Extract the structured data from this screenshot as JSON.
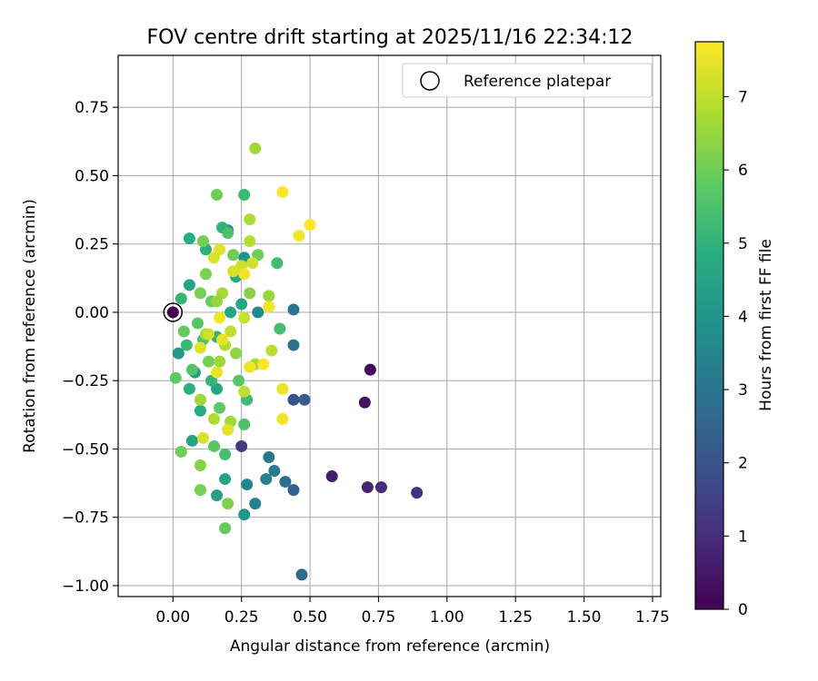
{
  "chart_data": {
    "type": "scatter",
    "title": "FOV centre drift starting at 2025/11/16 22:34:12",
    "xlabel": "Angular distance from reference (arcmin)",
    "ylabel": "Rotation from reference (arcmin)",
    "xlim": [
      -0.2,
      1.78
    ],
    "ylim": [
      -1.04,
      0.94
    ],
    "xticks": [
      0.0,
      0.25,
      0.5,
      0.75,
      1.0,
      1.25,
      1.5,
      1.75
    ],
    "xtick_labels": [
      "0.00",
      "0.25",
      "0.50",
      "0.75",
      "1.00",
      "1.25",
      "1.50",
      "1.75"
    ],
    "yticks": [
      -1.0,
      -0.75,
      -0.5,
      -0.25,
      0.0,
      0.25,
      0.5,
      0.75
    ],
    "ytick_labels": [
      "−1.00",
      "−0.75",
      "−0.50",
      "−0.25",
      "0.00",
      "0.25",
      "0.50",
      "0.75"
    ],
    "grid": true,
    "legend": {
      "placement": "top-right",
      "entries": [
        {
          "label": "Reference platepar",
          "marker": "open-circle"
        }
      ]
    },
    "colorbar": {
      "label": "Hours from first FF file",
      "colormap": "viridis",
      "range": [
        0,
        7.75
      ],
      "ticks": [
        0,
        1,
        2,
        3,
        4,
        5,
        6,
        7
      ],
      "tick_labels": [
        "0",
        "1",
        "2",
        "3",
        "4",
        "5",
        "6",
        "7"
      ]
    },
    "reference_point": {
      "x": 0.0,
      "y": 0.0
    },
    "points": [
      {
        "x": 0.0,
        "y": 0.0,
        "c": 0.0
      },
      {
        "x": 0.72,
        "y": -0.21,
        "c": 0.2
      },
      {
        "x": 0.7,
        "y": -0.33,
        "c": 0.4
      },
      {
        "x": 0.58,
        "y": -0.6,
        "c": 0.6
      },
      {
        "x": 0.71,
        "y": -0.64,
        "c": 0.8
      },
      {
        "x": 0.76,
        "y": -0.64,
        "c": 1.0
      },
      {
        "x": 0.89,
        "y": -0.66,
        "c": 1.1
      },
      {
        "x": 0.25,
        "y": -0.49,
        "c": 1.3
      },
      {
        "x": 0.44,
        "y": -0.32,
        "c": 2.0
      },
      {
        "x": 0.48,
        "y": -0.32,
        "c": 2.2
      },
      {
        "x": 0.44,
        "y": -0.65,
        "c": 2.3
      },
      {
        "x": 0.47,
        "y": -0.96,
        "c": 2.6
      },
      {
        "x": 0.41,
        "y": -0.62,
        "c": 2.8
      },
      {
        "x": 0.44,
        "y": -0.12,
        "c": 2.9
      },
      {
        "x": 0.44,
        "y": 0.01,
        "c": 3.0
      },
      {
        "x": 0.35,
        "y": -0.53,
        "c": 3.1
      },
      {
        "x": 0.37,
        "y": -0.58,
        "c": 3.2
      },
      {
        "x": 0.34,
        "y": -0.61,
        "c": 3.3
      },
      {
        "x": 0.3,
        "y": -0.7,
        "c": 3.4
      },
      {
        "x": 0.27,
        "y": -0.63,
        "c": 3.5
      },
      {
        "x": 0.31,
        "y": 0.0,
        "c": 3.6
      },
      {
        "x": 0.26,
        "y": -0.74,
        "c": 4.0
      },
      {
        "x": 0.2,
        "y": 0.3,
        "c": 3.8
      },
      {
        "x": 0.26,
        "y": 0.2,
        "c": 3.9
      },
      {
        "x": 0.02,
        "y": -0.15,
        "c": 4.1
      },
      {
        "x": 0.08,
        "y": -0.22,
        "c": 4.3
      },
      {
        "x": 0.07,
        "y": -0.47,
        "c": 4.4
      },
      {
        "x": 0.16,
        "y": -0.67,
        "c": 4.4
      },
      {
        "x": 0.19,
        "y": -0.61,
        "c": 4.5
      },
      {
        "x": 0.16,
        "y": -0.28,
        "c": 4.6
      },
      {
        "x": 0.06,
        "y": 0.1,
        "c": 4.5
      },
      {
        "x": 0.06,
        "y": 0.27,
        "c": 4.8
      },
      {
        "x": 0.12,
        "y": 0.23,
        "c": 4.9
      },
      {
        "x": 0.18,
        "y": 0.31,
        "c": 5.0
      },
      {
        "x": 0.23,
        "y": 0.13,
        "c": 4.7
      },
      {
        "x": 0.25,
        "y": 0.03,
        "c": 4.6
      },
      {
        "x": 0.21,
        "y": 0.0,
        "c": 4.5
      },
      {
        "x": 0.1,
        "y": -0.36,
        "c": 4.7
      },
      {
        "x": 0.16,
        "y": -0.09,
        "c": 5.0
      },
      {
        "x": 0.06,
        "y": -0.28,
        "c": 4.9
      },
      {
        "x": 0.03,
        "y": 0.05,
        "c": 5.1
      },
      {
        "x": 0.05,
        "y": -0.12,
        "c": 5.2
      },
      {
        "x": 0.14,
        "y": -0.25,
        "c": 5.1
      },
      {
        "x": 0.26,
        "y": 0.43,
        "c": 5.2
      },
      {
        "x": 0.38,
        "y": 0.18,
        "c": 5.3
      },
      {
        "x": 0.39,
        "y": -0.06,
        "c": 5.4
      },
      {
        "x": 0.27,
        "y": -0.32,
        "c": 5.3
      },
      {
        "x": 0.26,
        "y": -0.41,
        "c": 5.5
      },
      {
        "x": 0.19,
        "y": -0.52,
        "c": 5.4
      },
      {
        "x": 0.2,
        "y": 0.29,
        "c": 5.5
      },
      {
        "x": 0.11,
        "y": -0.1,
        "c": 5.6
      },
      {
        "x": 0.09,
        "y": -0.04,
        "c": 5.7
      },
      {
        "x": 0.07,
        "y": -0.21,
        "c": 5.6
      },
      {
        "x": 0.17,
        "y": -0.35,
        "c": 5.8
      },
      {
        "x": 0.15,
        "y": -0.49,
        "c": 5.7
      },
      {
        "x": 0.04,
        "y": -0.07,
        "c": 5.9
      },
      {
        "x": 0.01,
        "y": -0.24,
        "c": 5.8
      },
      {
        "x": 0.03,
        "y": -0.51,
        "c": 6.0
      },
      {
        "x": 0.19,
        "y": -0.79,
        "c": 5.9
      },
      {
        "x": 0.16,
        "y": 0.43,
        "c": 6.0
      },
      {
        "x": 0.11,
        "y": 0.26,
        "c": 6.1
      },
      {
        "x": 0.12,
        "y": 0.14,
        "c": 6.2
      },
      {
        "x": 0.1,
        "y": 0.07,
        "c": 6.1
      },
      {
        "x": 0.14,
        "y": 0.04,
        "c": 5.9
      },
      {
        "x": 0.22,
        "y": 0.21,
        "c": 6.0
      },
      {
        "x": 0.24,
        "y": -0.25,
        "c": 5.7
      },
      {
        "x": 0.13,
        "y": -0.18,
        "c": 6.1
      },
      {
        "x": 0.1,
        "y": -0.32,
        "c": 6.2
      },
      {
        "x": 0.1,
        "y": -0.65,
        "c": 6.1
      },
      {
        "x": 0.1,
        "y": -0.56,
        "c": 6.3
      },
      {
        "x": 0.2,
        "y": -0.7,
        "c": 6.2
      },
      {
        "x": 0.28,
        "y": 0.07,
        "c": 6.3
      },
      {
        "x": 0.23,
        "y": -0.15,
        "c": 6.4
      },
      {
        "x": 0.31,
        "y": 0.21,
        "c": 6.0
      },
      {
        "x": 0.35,
        "y": 0.06,
        "c": 6.5
      },
      {
        "x": 0.3,
        "y": 0.6,
        "c": 6.6
      },
      {
        "x": 0.28,
        "y": 0.34,
        "c": 6.8
      },
      {
        "x": 0.28,
        "y": 0.26,
        "c": 6.9
      },
      {
        "x": 0.18,
        "y": 0.07,
        "c": 6.7
      },
      {
        "x": 0.16,
        "y": 0.04,
        "c": 6.5
      },
      {
        "x": 0.12,
        "y": -0.08,
        "c": 6.7
      },
      {
        "x": 0.17,
        "y": -0.18,
        "c": 6.6
      },
      {
        "x": 0.21,
        "y": -0.4,
        "c": 6.6
      },
      {
        "x": 0.15,
        "y": -0.39,
        "c": 6.8
      },
      {
        "x": 0.1,
        "y": -0.32,
        "c": 6.6
      },
      {
        "x": 0.36,
        "y": -0.14,
        "c": 6.9
      },
      {
        "x": 0.3,
        "y": -0.19,
        "c": 6.7
      },
      {
        "x": 0.21,
        "y": -0.07,
        "c": 7.0
      },
      {
        "x": 0.19,
        "y": -0.12,
        "c": 6.8
      },
      {
        "x": 0.26,
        "y": -0.02,
        "c": 7.1
      },
      {
        "x": 0.26,
        "y": -0.29,
        "c": 7.0
      },
      {
        "x": 0.25,
        "y": 0.17,
        "c": 7.1
      },
      {
        "x": 0.29,
        "y": 0.18,
        "c": 7.2
      },
      {
        "x": 0.22,
        "y": 0.15,
        "c": 7.3
      },
      {
        "x": 0.17,
        "y": 0.23,
        "c": 7.4
      },
      {
        "x": 0.15,
        "y": 0.2,
        "c": 7.3
      },
      {
        "x": 0.18,
        "y": -0.1,
        "c": 7.5
      },
      {
        "x": 0.17,
        "y": -0.02,
        "c": 7.6
      },
      {
        "x": 0.13,
        "y": -0.08,
        "c": 7.2
      },
      {
        "x": 0.1,
        "y": -0.13,
        "c": 7.4
      },
      {
        "x": 0.11,
        "y": -0.46,
        "c": 7.3
      },
      {
        "x": 0.2,
        "y": -0.43,
        "c": 7.4
      },
      {
        "x": 0.16,
        "y": -0.22,
        "c": 7.5
      },
      {
        "x": 0.28,
        "y": -0.2,
        "c": 7.6
      },
      {
        "x": 0.33,
        "y": -0.19,
        "c": 7.7
      },
      {
        "x": 0.35,
        "y": 0.02,
        "c": 7.6
      },
      {
        "x": 0.4,
        "y": -0.28,
        "c": 7.5
      },
      {
        "x": 0.4,
        "y": -0.39,
        "c": 7.6
      },
      {
        "x": 0.4,
        "y": 0.44,
        "c": 7.7
      },
      {
        "x": 0.46,
        "y": 0.28,
        "c": 7.6
      },
      {
        "x": 0.5,
        "y": 0.32,
        "c": 7.7
      },
      {
        "x": 0.26,
        "y": 0.14,
        "c": 7.6
      }
    ]
  }
}
